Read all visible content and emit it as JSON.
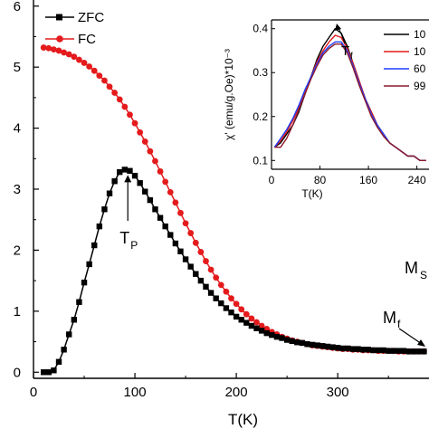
{
  "chart_data": [
    {
      "type": "line",
      "title": "",
      "xlabel": "T(K)",
      "ylabel": "",
      "xlim": [
        0,
        390
      ],
      "ylim": [
        -0.1,
        6.1
      ],
      "x_ticks": [
        "0",
        "100",
        "200",
        "300"
      ],
      "y_ticks": [
        "0",
        "1",
        "2",
        "3",
        "4",
        "5",
        "6"
      ],
      "legend_position": "top-left",
      "grid": false,
      "series": [
        {
          "name": "ZFC",
          "color": "#000000",
          "marker": "square",
          "x": [
            10,
            15,
            20,
            25,
            30,
            35,
            40,
            45,
            50,
            55,
            60,
            65,
            70,
            75,
            80,
            85,
            90,
            95,
            100,
            105,
            110,
            115,
            120,
            125,
            130,
            135,
            140,
            145,
            150,
            155,
            160,
            165,
            170,
            175,
            180,
            185,
            190,
            195,
            200,
            205,
            210,
            215,
            220,
            225,
            230,
            235,
            240,
            245,
            250,
            255,
            260,
            265,
            270,
            275,
            280,
            285,
            290,
            295,
            300,
            305,
            310,
            315,
            320,
            325,
            330,
            335,
            340,
            345,
            350,
            355,
            360,
            365,
            370,
            375,
            380,
            385
          ],
          "y": [
            0.0,
            0.0,
            0.03,
            0.17,
            0.37,
            0.62,
            0.86,
            1.15,
            1.47,
            1.77,
            2.08,
            2.39,
            2.67,
            2.93,
            3.13,
            3.28,
            3.32,
            3.3,
            3.22,
            3.1,
            2.96,
            2.82,
            2.67,
            2.53,
            2.39,
            2.25,
            2.11,
            1.98,
            1.85,
            1.73,
            1.61,
            1.5,
            1.4,
            1.3,
            1.21,
            1.13,
            1.05,
            0.98,
            0.91,
            0.86,
            0.81,
            0.76,
            0.72,
            0.68,
            0.64,
            0.61,
            0.58,
            0.56,
            0.53,
            0.51,
            0.49,
            0.48,
            0.46,
            0.45,
            0.44,
            0.43,
            0.42,
            0.41,
            0.4,
            0.39,
            0.39,
            0.38,
            0.38,
            0.37,
            0.37,
            0.36,
            0.36,
            0.36,
            0.35,
            0.35,
            0.35,
            0.35,
            0.34,
            0.34,
            0.34,
            0.34
          ]
        },
        {
          "name": "FC",
          "color": "#e41a1c",
          "marker": "circle",
          "x": [
            10,
            15,
            20,
            25,
            30,
            35,
            40,
            45,
            50,
            55,
            60,
            65,
            70,
            75,
            80,
            85,
            90,
            95,
            100,
            105,
            110,
            115,
            120,
            125,
            130,
            135,
            140,
            145,
            150,
            155,
            160,
            165,
            170,
            175,
            180,
            185,
            190,
            195,
            200,
            205,
            210,
            215,
            220,
            225,
            230,
            235,
            240,
            245,
            250,
            255,
            260,
            265,
            270,
            275,
            280,
            285,
            290,
            295,
            300,
            305,
            310,
            315,
            320,
            325,
            330,
            335,
            340,
            345,
            350,
            355,
            360,
            365,
            370,
            375,
            380,
            385
          ],
          "y": [
            5.32,
            5.31,
            5.29,
            5.27,
            5.24,
            5.21,
            5.17,
            5.12,
            5.07,
            5.01,
            4.94,
            4.86,
            4.78,
            4.68,
            4.58,
            4.47,
            4.35,
            4.22,
            4.08,
            3.93,
            3.78,
            3.62,
            3.46,
            3.29,
            3.12,
            2.95,
            2.78,
            2.61,
            2.44,
            2.28,
            2.12,
            1.97,
            1.82,
            1.68,
            1.55,
            1.43,
            1.32,
            1.21,
            1.12,
            1.03,
            0.95,
            0.88,
            0.82,
            0.76,
            0.71,
            0.66,
            0.62,
            0.58,
            0.55,
            0.52,
            0.5,
            0.48,
            0.46,
            0.44,
            0.43,
            0.42,
            0.41,
            0.4,
            0.39,
            0.38,
            0.38,
            0.37,
            0.37,
            0.36,
            0.36,
            0.36,
            0.35,
            0.35,
            0.35,
            0.35,
            0.34,
            0.34,
            0.34,
            0.34,
            0.34,
            0.34
          ]
        }
      ],
      "annotations": [
        {
          "text": "T",
          "sub": "P",
          "x": 93,
          "y": 3.32,
          "arrow": "up"
        },
        {
          "text": "M",
          "sub": "f",
          "x": 378,
          "y": 0.42,
          "arrow": "down-right"
        },
        {
          "text": "M",
          "sub": "S",
          "x": 380,
          "y": 1.65,
          "arrow": "none"
        }
      ]
    },
    {
      "type": "line",
      "title": "",
      "inset": true,
      "xlabel": "T(K)",
      "ylabel": "χ' (emu/g.Oe)*10⁻³",
      "xlim": [
        0,
        260
      ],
      "ylim": [
        0.08,
        0.42
      ],
      "x_ticks": [
        "0",
        "80",
        "160",
        "240"
      ],
      "y_ticks": [
        "0.1",
        "0.2",
        "0.3",
        "0.4"
      ],
      "legend_position": "top-right",
      "series": [
        {
          "name": "10",
          "color": "#000000",
          "x": [
            5,
            15,
            25,
            35,
            45,
            55,
            65,
            75,
            85,
            95,
            105,
            115,
            125,
            135,
            145,
            155,
            165,
            175,
            185,
            195,
            205,
            215,
            225,
            235,
            245,
            255
          ],
          "y": [
            0.13,
            0.14,
            0.16,
            0.18,
            0.21,
            0.25,
            0.29,
            0.33,
            0.36,
            0.38,
            0.4,
            0.39,
            0.36,
            0.32,
            0.28,
            0.24,
            0.21,
            0.18,
            0.16,
            0.14,
            0.13,
            0.12,
            0.11,
            0.11,
            0.1,
            0.1
          ]
        },
        {
          "name": "10",
          "color": "#e41a1c",
          "x": [
            5,
            15,
            25,
            35,
            45,
            55,
            65,
            75,
            85,
            95,
            105,
            115,
            125,
            135,
            145,
            155,
            165,
            175,
            185,
            195,
            205,
            215,
            225,
            235,
            245,
            255
          ],
          "y": [
            0.13,
            0.145,
            0.165,
            0.19,
            0.22,
            0.255,
            0.29,
            0.325,
            0.35,
            0.37,
            0.385,
            0.38,
            0.355,
            0.32,
            0.28,
            0.24,
            0.21,
            0.18,
            0.16,
            0.14,
            0.13,
            0.12,
            0.11,
            0.11,
            0.1,
            0.1
          ]
        },
        {
          "name": "60",
          "color": "#1f3fff",
          "x": [
            5,
            15,
            25,
            35,
            45,
            55,
            65,
            75,
            85,
            95,
            105,
            115,
            125,
            135,
            145,
            155,
            165,
            175,
            185,
            195,
            205,
            215,
            225,
            235,
            245,
            255
          ],
          "y": [
            0.13,
            0.15,
            0.17,
            0.195,
            0.225,
            0.26,
            0.29,
            0.32,
            0.345,
            0.36,
            0.37,
            0.37,
            0.35,
            0.315,
            0.275,
            0.24,
            0.205,
            0.18,
            0.16,
            0.14,
            0.13,
            0.12,
            0.11,
            0.11,
            0.1,
            0.1
          ]
        },
        {
          "name": "99",
          "color": "#8b1a2b",
          "x": [
            5,
            15,
            25,
            35,
            45,
            55,
            65,
            75,
            85,
            95,
            105,
            115,
            125,
            135,
            145,
            155,
            165,
            175,
            185,
            195,
            205,
            215,
            225,
            235,
            245,
            255
          ],
          "y": [
            0.13,
            0.13,
            0.15,
            0.18,
            0.215,
            0.25,
            0.285,
            0.315,
            0.34,
            0.355,
            0.365,
            0.365,
            0.345,
            0.31,
            0.27,
            0.235,
            0.2,
            0.175,
            0.155,
            0.14,
            0.13,
            0.12,
            0.11,
            0.11,
            0.1,
            0.1
          ]
        }
      ],
      "annotations": [
        {
          "text": "T",
          "sub": "f",
          "x": 112,
          "y": 0.375,
          "arrow": "up-left"
        }
      ]
    }
  ]
}
